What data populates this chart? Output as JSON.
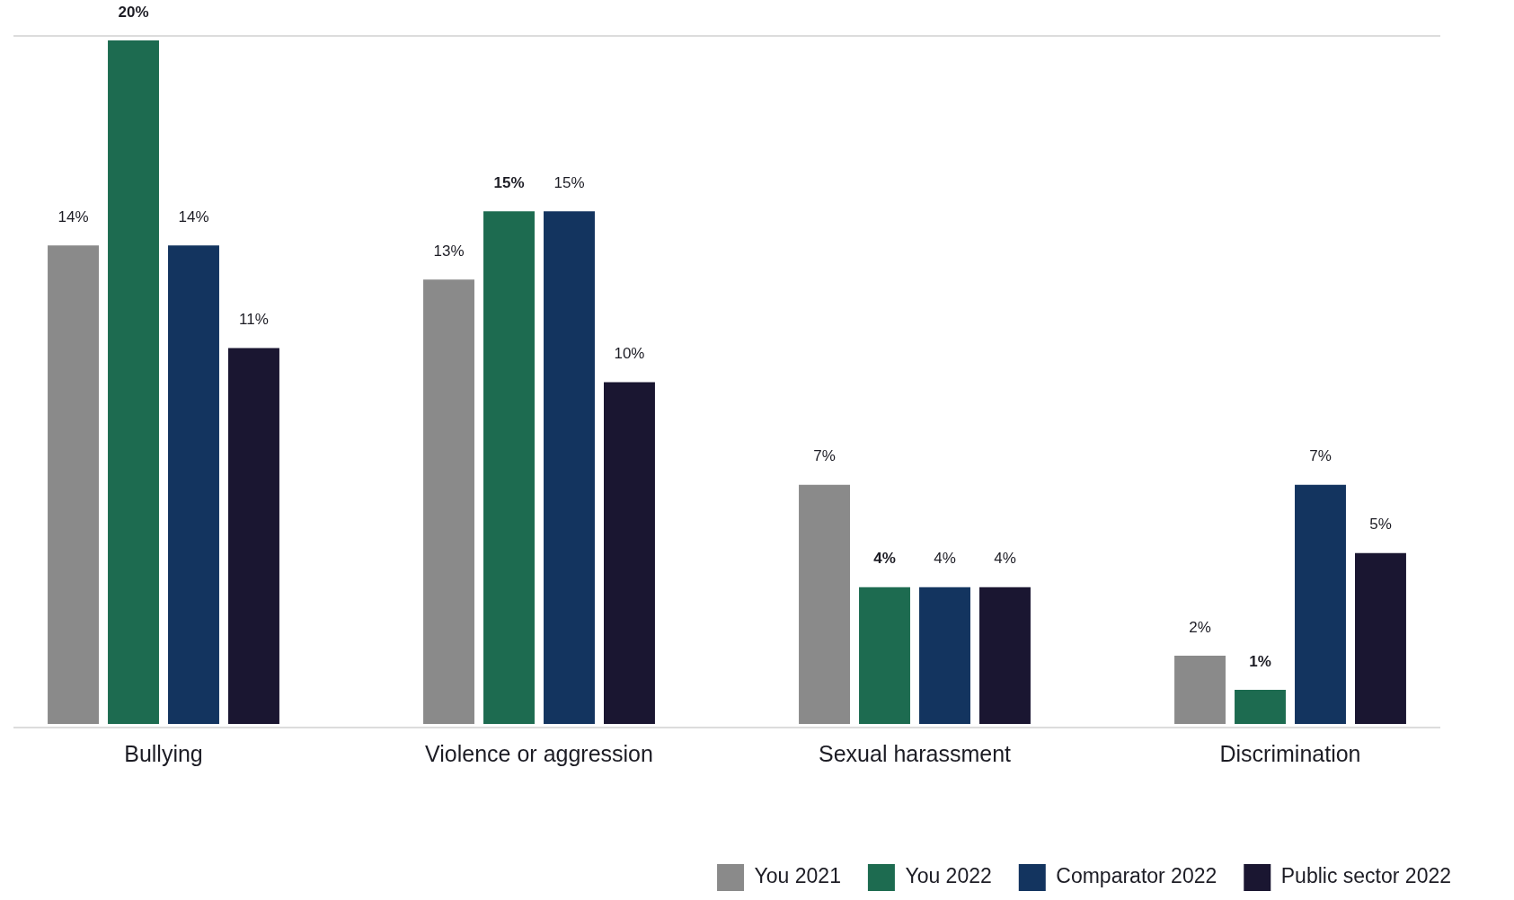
{
  "chart_data": {
    "type": "bar",
    "categories": [
      "Bullying",
      "Violence or aggression",
      "Sexual harassment",
      "Discrimination"
    ],
    "series": [
      {
        "name": "You 2021",
        "color": "#8a8a8a",
        "values": [
          14,
          13,
          7,
          2
        ],
        "value_labels": [
          "14%",
          "13%",
          "7%",
          "2%"
        ]
      },
      {
        "name": "You 2022",
        "color": "#1d6b50",
        "values": [
          20,
          15,
          4,
          1
        ],
        "value_labels": [
          "20%",
          "15%",
          "4%",
          "1%"
        ]
      },
      {
        "name": "Comparator 2022",
        "color": "#13345f",
        "values": [
          14,
          15,
          4,
          7
        ],
        "value_labels": [
          "14%",
          "15%",
          "4%",
          "7%"
        ]
      },
      {
        "name": "Public sector 2022",
        "color": "#1a1631",
        "values": [
          11,
          10,
          4,
          5
        ],
        "value_labels": [
          "11%",
          "10%",
          "4%",
          "5%"
        ]
      }
    ],
    "legend": "bottom right",
    "tick_labels": "x"
  }
}
